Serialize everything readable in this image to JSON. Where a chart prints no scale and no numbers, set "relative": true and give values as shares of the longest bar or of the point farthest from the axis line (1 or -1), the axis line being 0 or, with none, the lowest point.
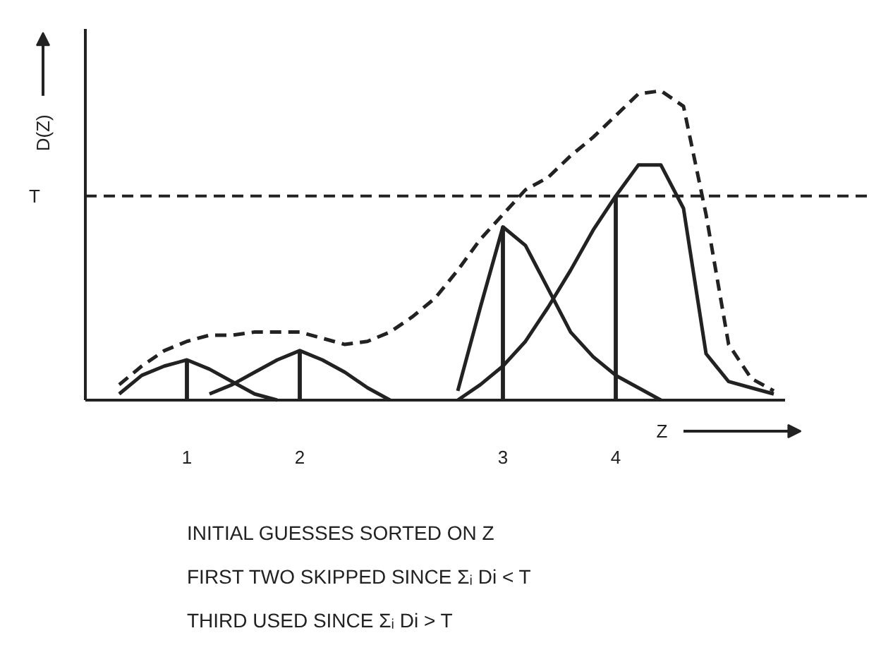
{
  "chart_data": {
    "type": "line",
    "relative": true,
    "xlabel": "Z",
    "ylabel": "D(Z)",
    "marker": "none",
    "categories": [
      null,
      null,
      null,
      null,
      "1",
      null,
      null,
      null,
      null,
      "2",
      null,
      null,
      null,
      null,
      null,
      null,
      null,
      null,
      "3",
      null,
      null,
      null,
      null,
      "4",
      null,
      null,
      null,
      null,
      null,
      null,
      null
    ],
    "series": [
      {
        "color": "#222222",
        "line_style": "solid",
        "values": [
          null,
          0.02,
          0.08,
          0.11,
          0.13,
          0.1,
          0.06,
          0.02,
          0,
          null,
          null,
          null,
          null,
          null,
          null,
          null,
          null,
          null,
          null,
          null,
          null,
          null,
          null,
          null,
          null,
          null,
          null,
          null,
          null,
          null,
          null
        ]
      },
      {
        "color": "#222222",
        "line_style": "solid",
        "values": [
          null,
          null,
          null,
          null,
          null,
          0.02,
          0.05,
          0.09,
          0.13,
          0.16,
          0.13,
          0.09,
          0.04,
          0,
          null,
          null,
          null,
          null,
          null,
          null,
          null,
          null,
          null,
          null,
          null,
          null,
          null,
          null,
          null,
          null,
          null
        ]
      },
      {
        "color": "#222222",
        "line_style": "solid",
        "values": [
          null,
          null,
          null,
          null,
          null,
          null,
          null,
          null,
          null,
          null,
          null,
          null,
          null,
          null,
          null,
          null,
          0.03,
          0.3,
          0.56,
          0.5,
          0.36,
          0.22,
          0.14,
          0.08,
          0.04,
          0,
          null,
          null,
          null,
          null,
          null
        ]
      },
      {
        "color": "#222222",
        "line_style": "solid",
        "values": [
          null,
          null,
          null,
          null,
          null,
          null,
          null,
          null,
          null,
          null,
          null,
          null,
          null,
          null,
          null,
          null,
          0,
          0.05,
          0.11,
          0.19,
          0.3,
          0.42,
          0.55,
          0.66,
          0.76,
          0.76,
          0.62,
          0.15,
          0.06,
          0.04,
          0.02
        ]
      },
      {
        "color": "#222222",
        "line_style": "dashed",
        "values": [
          null,
          0.05,
          0.11,
          0.16,
          0.19,
          0.21,
          0.21,
          0.22,
          0.22,
          0.22,
          0.2,
          0.18,
          0.19,
          0.22,
          0.27,
          0.33,
          0.42,
          0.52,
          0.6,
          0.68,
          0.72,
          0.79,
          0.85,
          0.92,
          0.99,
          1.0,
          0.95,
          0.6,
          0.18,
          0.07,
          0.03
        ]
      },
      {
        "type": "bar",
        "color": "#222222",
        "values": [
          null,
          null,
          null,
          null,
          0.13,
          null,
          null,
          null,
          null,
          0.16,
          null,
          null,
          null,
          null,
          null,
          null,
          null,
          null,
          0.56,
          null,
          null,
          null,
          null,
          0.66,
          null,
          null,
          null,
          null,
          null,
          null,
          null
        ]
      }
    ],
    "ref_lines": [
      {
        "axis": "y",
        "value": 0.66,
        "label": "T",
        "line_style": "dashed",
        "color": "#222222"
      }
    ],
    "annotations": [
      "INITIAL GUESSES SORTED ON Z",
      "FIRST TWO SKIPPED SINCE Σᵢ Di < T",
      "THIRD USED SINCE Σᵢ Di > T"
    ]
  }
}
